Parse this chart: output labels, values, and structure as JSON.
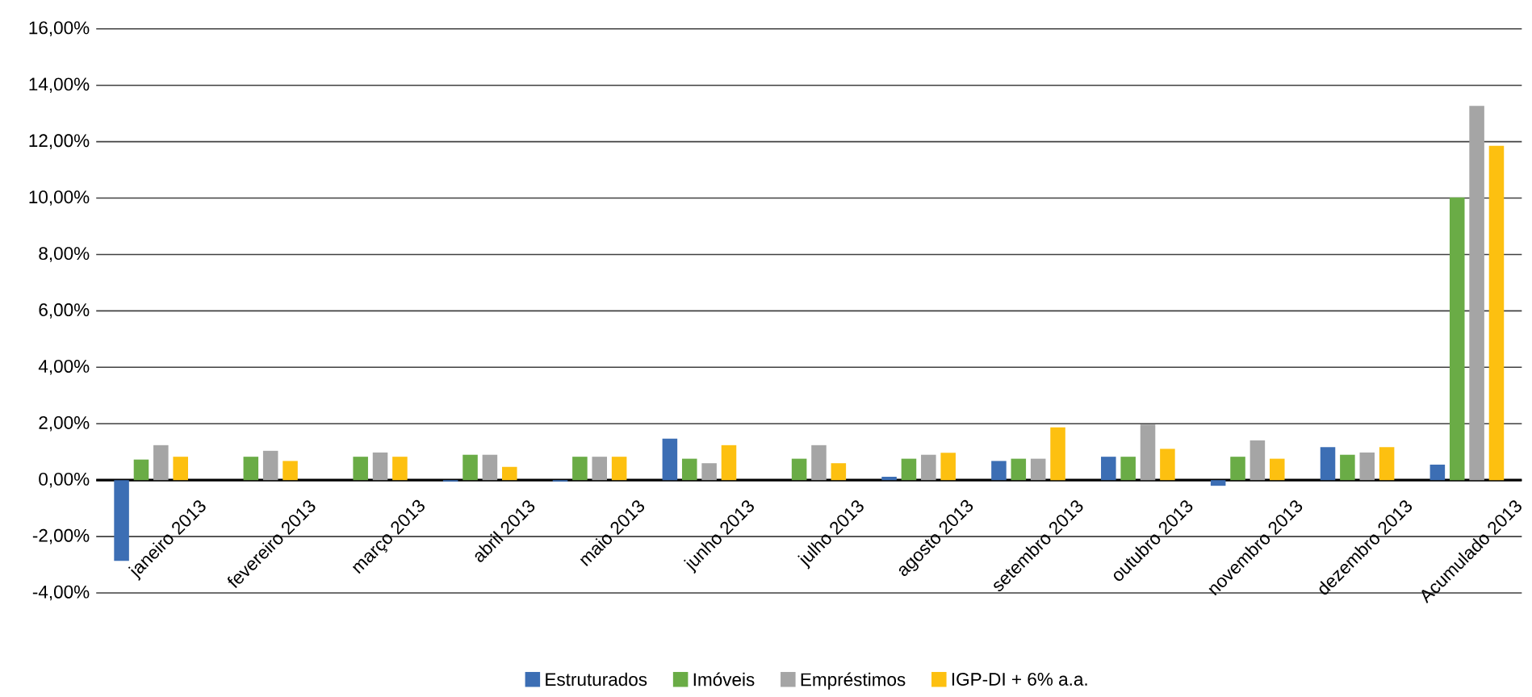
{
  "chart_data": {
    "type": "bar",
    "categories": [
      "janeiro 2013",
      "fevereiro 2013",
      "março 2013",
      "abril 2013",
      "maio 2013",
      "junho 2013",
      "julho 2013",
      "agosto 2013",
      "setembro 2013",
      "outubro 2013",
      "novembro 2013",
      "dezembro 2013",
      "Acumulado 2013"
    ],
    "series": [
      {
        "name": "Estruturados",
        "color": "#3c6eb4",
        "values": [
          -2.86,
          null,
          null,
          -0.05,
          -0.05,
          1.47,
          null,
          0.12,
          0.68,
          0.83,
          -0.2,
          1.17,
          0.55
        ]
      },
      {
        "name": "Imóveis",
        "color": "#6aac46",
        "values": [
          0.73,
          0.83,
          0.83,
          0.9,
          0.83,
          0.76,
          0.76,
          0.76,
          0.76,
          0.83,
          0.83,
          0.9,
          10.02
        ]
      },
      {
        "name": "Empréstimos",
        "color": "#a5a5a5",
        "values": [
          1.24,
          1.04,
          0.98,
          0.9,
          0.83,
          0.6,
          1.24,
          0.9,
          0.76,
          1.97,
          1.41,
          0.98,
          13.27
        ]
      },
      {
        "name": "IGP-DI + 6% a.a.",
        "color": "#fdc010",
        "values": [
          0.83,
          0.68,
          0.83,
          0.47,
          0.83,
          1.24,
          0.6,
          0.97,
          1.87,
          1.11,
          0.76,
          1.17,
          11.85
        ]
      }
    ],
    "ylim": [
      -4,
      16
    ],
    "yticks": [
      {
        "value": -4,
        "label": "-4,00%"
      },
      {
        "value": -2,
        "label": "-2,00%"
      },
      {
        "value": 0,
        "label": "0,00%"
      },
      {
        "value": 2,
        "label": "2,00%"
      },
      {
        "value": 4,
        "label": "4,00%"
      },
      {
        "value": 6,
        "label": "6,00%"
      },
      {
        "value": 8,
        "label": "8,00%"
      },
      {
        "value": 10,
        "label": "10,00%"
      },
      {
        "value": 12,
        "label": "12,00%"
      },
      {
        "value": 14,
        "label": "14,00%"
      },
      {
        "value": 16,
        "label": "16,00%"
      }
    ],
    "grid": "y",
    "legend": "bottom"
  }
}
